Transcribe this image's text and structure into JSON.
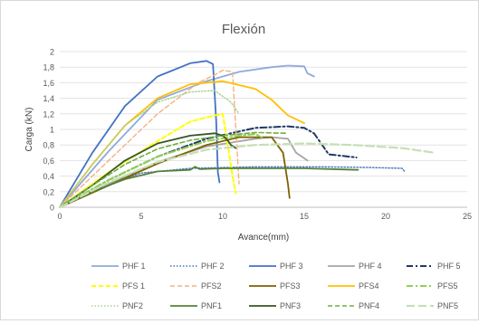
{
  "chart_data": {
    "type": "line",
    "title": "Flexión",
    "xlabel": "Avance(mm)",
    "ylabel": "Carga (kN)",
    "xlim": [
      0,
      25
    ],
    "ylim": [
      0,
      2
    ],
    "x_ticks": [
      "0",
      "5",
      "10",
      "15",
      "20",
      "25"
    ],
    "y_ticks": [
      "0",
      "0,2",
      "0,4",
      "0,6",
      "0,8",
      "1",
      "1,2",
      "1,4",
      "1,6",
      "1,8",
      "2"
    ],
    "grid": "horizontal",
    "legend_position": "bottom",
    "series": [
      {
        "name": "PHF 1",
        "color": "#8FAADC",
        "dash": "solid",
        "width": 1.8,
        "x": [
          0,
          3,
          6,
          9,
          11,
          13,
          14,
          15,
          15.2,
          15.6
        ],
        "y": [
          0,
          0.72,
          1.38,
          1.62,
          1.74,
          1.8,
          1.82,
          1.81,
          1.72,
          1.68
        ]
      },
      {
        "name": "PHF 2",
        "color": "#4472C4",
        "dash": "dot",
        "width": 1.4,
        "x": [
          0,
          3,
          5,
          8,
          12,
          16,
          19,
          21,
          21.2
        ],
        "y": [
          0,
          0.3,
          0.44,
          0.5,
          0.52,
          0.52,
          0.51,
          0.5,
          0.45
        ]
      },
      {
        "name": "PHF 3",
        "color": "#4472C4",
        "dash": "solid",
        "width": 1.8,
        "x": [
          0,
          2,
          4,
          6,
          8,
          9,
          9.4,
          9.6,
          9.7,
          9.8
        ],
        "y": [
          0,
          0.7,
          1.3,
          1.68,
          1.85,
          1.88,
          1.84,
          1.1,
          0.45,
          0.32
        ]
      },
      {
        "name": "PHF 4",
        "color": "#A5A5A5",
        "dash": "solid",
        "width": 1.8,
        "x": [
          0,
          3,
          6,
          9,
          12,
          13,
          14,
          14.5,
          15.2
        ],
        "y": [
          0,
          0.3,
          0.58,
          0.78,
          0.88,
          0.9,
          0.88,
          0.7,
          0.6
        ]
      },
      {
        "name": "PHF 5",
        "color": "#203864",
        "dash": "dashdot",
        "width": 2,
        "x": [
          0,
          3,
          6,
          9,
          12,
          14,
          15,
          15.6,
          16.5,
          18.2
        ],
        "y": [
          0,
          0.35,
          0.65,
          0.88,
          1.02,
          1.04,
          1.02,
          0.95,
          0.68,
          0.64
        ]
      },
      {
        "name": "PFS 1",
        "color": "#FFFF00",
        "dash": "dash",
        "width": 2,
        "x": [
          0,
          3,
          6,
          8,
          9.5,
          10,
          10.2,
          10.6,
          10.8
        ],
        "y": [
          0,
          0.45,
          0.85,
          1.1,
          1.18,
          1.2,
          0.95,
          0.4,
          0.18
        ]
      },
      {
        "name": "PFS2",
        "color": "#F4B183",
        "dash": "dash",
        "width": 1.4,
        "x": [
          0,
          3,
          6,
          8.5,
          9.5,
          10,
          10.6,
          11
        ],
        "y": [
          0,
          0.6,
          1.2,
          1.6,
          1.7,
          1.76,
          1.74,
          0.3
        ]
      },
      {
        "name": "PFS3",
        "color": "#7F6000",
        "dash": "solid",
        "width": 1.8,
        "x": [
          0,
          3,
          6,
          9,
          11,
          13,
          13.7,
          14,
          14.1
        ],
        "y": [
          0,
          0.28,
          0.56,
          0.8,
          0.9,
          0.9,
          0.7,
          0.3,
          0.12
        ]
      },
      {
        "name": "PFS4",
        "color": "#FFC000",
        "dash": "solid",
        "width": 1.8,
        "x": [
          0,
          2,
          4,
          6,
          8,
          10,
          12,
          13,
          14,
          15
        ],
        "y": [
          0,
          0.55,
          1.05,
          1.4,
          1.58,
          1.62,
          1.52,
          1.38,
          1.18,
          1.08
        ]
      },
      {
        "name": "PFS5",
        "color": "#92D050",
        "dash": "dashdot",
        "width": 2,
        "x": [
          0,
          3,
          6,
          9,
          11,
          12,
          12.4
        ],
        "y": [
          0,
          0.35,
          0.65,
          0.85,
          0.92,
          0.94,
          0.9
        ]
      },
      {
        "name": "PNF2",
        "color": "#A9D18E",
        "dash": "dot",
        "width": 1.4,
        "x": [
          0,
          2,
          4,
          6,
          8,
          9.5,
          10.5,
          11
        ],
        "y": [
          0,
          0.55,
          1.05,
          1.35,
          1.48,
          1.5,
          1.35,
          1.2
        ]
      },
      {
        "name": "PNF1",
        "color": "#548235",
        "dash": "solid",
        "width": 1.8,
        "x": [
          0,
          2,
          4,
          6,
          8,
          8.3,
          8.6,
          10,
          13,
          15,
          18.3
        ],
        "y": [
          0,
          0.2,
          0.36,
          0.46,
          0.48,
          0.52,
          0.49,
          0.5,
          0.5,
          0.5,
          0.48
        ]
      },
      {
        "name": "PNF3",
        "color": "#375623",
        "dash": "solid",
        "width": 1.8,
        "x": [
          0,
          2,
          4,
          6,
          8,
          9.5,
          10,
          10.3,
          10.5,
          10.8
        ],
        "y": [
          0,
          0.28,
          0.6,
          0.82,
          0.92,
          0.95,
          0.92,
          0.86,
          0.8,
          0.76
        ]
      },
      {
        "name": "PNF4",
        "color": "#70AD47",
        "dash": "dash",
        "width": 1.6,
        "x": [
          0,
          2,
          4,
          6,
          8,
          10,
          12,
          14
        ],
        "y": [
          0,
          0.28,
          0.55,
          0.75,
          0.86,
          0.92,
          0.96,
          0.95
        ]
      },
      {
        "name": "PNF5",
        "color": "#C5E0B4",
        "dash": "longdash",
        "width": 2.2,
        "x": [
          0,
          3,
          6,
          9,
          12,
          15,
          18,
          21,
          23
        ],
        "y": [
          0,
          0.32,
          0.58,
          0.74,
          0.8,
          0.82,
          0.8,
          0.76,
          0.7
        ]
      }
    ]
  }
}
